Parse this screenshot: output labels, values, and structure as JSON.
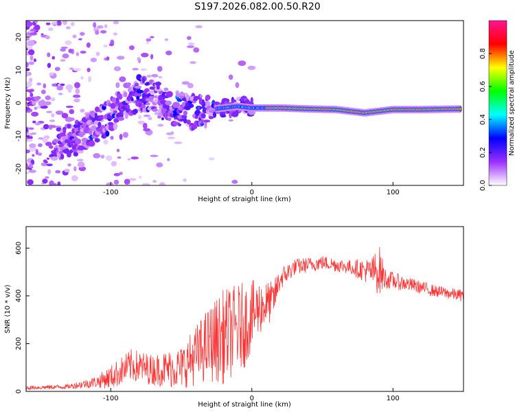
{
  "title": "S197.2026.082.00.50.R20",
  "chart_data": [
    {
      "type": "heatmap",
      "name": "spectrogram",
      "xlabel": "Height of straight line (km)",
      "ylabel": "Frequency (Hz)",
      "xlim": [
        -160,
        150
      ],
      "ylim": [
        -25,
        25
      ],
      "xticks": [
        -100,
        0,
        100
      ],
      "yticks": [
        -20,
        -10,
        0,
        10,
        20
      ],
      "colorbar": {
        "label": "Normalized spectral amplitude",
        "range": [
          0,
          1
        ],
        "ticks": [
          0.0,
          0.2,
          0.4,
          0.6,
          0.8
        ],
        "colors": [
          "#ffffff",
          "#9b30ff",
          "#0000ff",
          "#00ffff",
          "#00ff00",
          "#ffff00",
          "#ff0000",
          "#ff1493"
        ]
      },
      "ridge_points": [
        {
          "x": -135,
          "y": -12
        },
        {
          "x": -120,
          "y": -10
        },
        {
          "x": -110,
          "y": -7
        },
        {
          "x": -100,
          "y": -4
        },
        {
          "x": -90,
          "y": 0
        },
        {
          "x": -80,
          "y": 3
        },
        {
          "x": -70,
          "y": 2
        },
        {
          "x": -60,
          "y": -1
        },
        {
          "x": -50,
          "y": -2
        },
        {
          "x": -40,
          "y": -3
        },
        {
          "x": -30,
          "y": -2
        },
        {
          "x": -20,
          "y": -1.5
        },
        {
          "x": -10,
          "y": -1
        },
        {
          "x": 0,
          "y": -1.5
        },
        {
          "x": 20,
          "y": -1.5
        },
        {
          "x": 40,
          "y": -1.8
        },
        {
          "x": 60,
          "y": -2
        },
        {
          "x": 80,
          "y": -3
        },
        {
          "x": 100,
          "y": -2
        },
        {
          "x": 120,
          "y": -2
        },
        {
          "x": 150,
          "y": -1.8
        }
      ]
    },
    {
      "type": "line",
      "name": "snr",
      "xlabel": "Height of straight line (km)",
      "ylabel": "SNR (10 * v/v)",
      "xlim": [
        -160,
        150
      ],
      "ylim": [
        0,
        690
      ],
      "xticks": [
        -100,
        0,
        100
      ],
      "yticks": [
        0,
        200,
        400,
        600
      ],
      "color": "#ff3333",
      "envelope": [
        {
          "x": -160,
          "mean": 15,
          "spread": 8
        },
        {
          "x": -130,
          "mean": 20,
          "spread": 10
        },
        {
          "x": -110,
          "mean": 40,
          "spread": 25
        },
        {
          "x": -100,
          "mean": 60,
          "spread": 50
        },
        {
          "x": -85,
          "mean": 110,
          "spread": 70
        },
        {
          "x": -70,
          "mean": 90,
          "spread": 65
        },
        {
          "x": -50,
          "mean": 100,
          "spread": 90
        },
        {
          "x": -30,
          "mean": 200,
          "spread": 160
        },
        {
          "x": -20,
          "mean": 230,
          "spread": 200
        },
        {
          "x": -5,
          "mean": 280,
          "spread": 180
        },
        {
          "x": 5,
          "mean": 350,
          "spread": 120
        },
        {
          "x": 15,
          "mean": 380,
          "spread": 80
        },
        {
          "x": 20,
          "mean": 470,
          "spread": 50
        },
        {
          "x": 30,
          "mean": 520,
          "spread": 35
        },
        {
          "x": 50,
          "mean": 540,
          "spread": 30
        },
        {
          "x": 70,
          "mean": 520,
          "spread": 30
        },
        {
          "x": 85,
          "mean": 500,
          "spread": 60
        },
        {
          "x": 90,
          "mean": 510,
          "spread": 110
        },
        {
          "x": 95,
          "mean": 470,
          "spread": 40
        },
        {
          "x": 110,
          "mean": 450,
          "spread": 30
        },
        {
          "x": 130,
          "mean": 420,
          "spread": 25
        },
        {
          "x": 150,
          "mean": 400,
          "spread": 25
        }
      ]
    }
  ]
}
